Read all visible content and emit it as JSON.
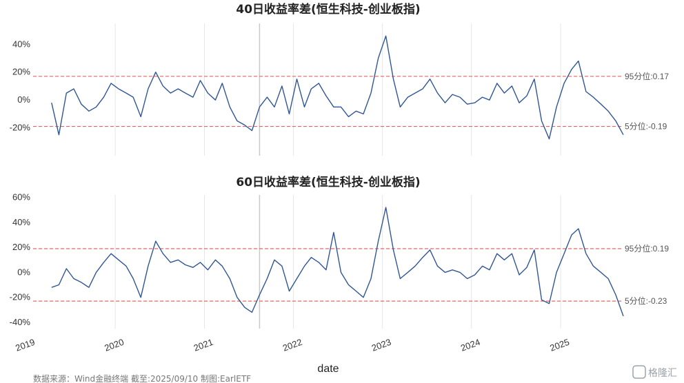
{
  "colors": {
    "line": "#2f5597",
    "threshold": "#e06666",
    "panel_bg": "#ffffff",
    "grid": "#e6e6e6",
    "vline": "#c9c9c9"
  },
  "chart_data": [
    {
      "type": "line",
      "title": "40日收益率差(恒生科技-创业板指)",
      "ylim": [
        -0.4,
        0.55
      ],
      "yticks": [
        -0.2,
        0.0,
        0.2,
        0.4
      ],
      "yticklabels": [
        "-20%",
        "0%",
        "20%",
        "40%"
      ],
      "thresholds": [
        {
          "label": "95分位:0.17",
          "value": 0.17
        },
        {
          "label": "5分位:-0.19",
          "value": -0.19
        }
      ],
      "series": [
        {
          "x": [
            "2019-04",
            "2019-05",
            "2019-06",
            "2019-07",
            "2019-08",
            "2019-09",
            "2019-10",
            "2019-11",
            "2019-12",
            "2020-01",
            "2020-02",
            "2020-03",
            "2020-04",
            "2020-05",
            "2020-06",
            "2020-07",
            "2020-08",
            "2020-09",
            "2020-10",
            "2020-11",
            "2020-12",
            "2021-01",
            "2021-02",
            "2021-03",
            "2021-04",
            "2021-05",
            "2021-06",
            "2021-07",
            "2021-08",
            "2021-09",
            "2021-10",
            "2021-11",
            "2021-12",
            "2022-01",
            "2022-02",
            "2022-03",
            "2022-04",
            "2022-05",
            "2022-06",
            "2022-07",
            "2022-08",
            "2022-09",
            "2022-10",
            "2022-11",
            "2022-12",
            "2023-01",
            "2023-02",
            "2023-03",
            "2023-04",
            "2023-05",
            "2023-06",
            "2023-07",
            "2023-08",
            "2023-09",
            "2023-10",
            "2023-11",
            "2023-12",
            "2024-01",
            "2024-02",
            "2024-03",
            "2024-04",
            "2024-05",
            "2024-06",
            "2024-07",
            "2024-08",
            "2024-09",
            "2024-10",
            "2024-11",
            "2024-12",
            "2025-01",
            "2025-02",
            "2025-03",
            "2025-04",
            "2025-05",
            "2025-06",
            "2025-07",
            "2025-08",
            "2025-09"
          ],
          "y": [
            -0.02,
            -0.25,
            0.05,
            0.08,
            -0.03,
            -0.08,
            -0.05,
            0.02,
            0.12,
            0.08,
            0.05,
            0.02,
            -0.12,
            0.08,
            0.2,
            0.1,
            0.05,
            0.08,
            0.05,
            0.02,
            0.14,
            0.05,
            0.0,
            0.12,
            -0.05,
            -0.15,
            -0.18,
            -0.22,
            -0.05,
            0.02,
            -0.05,
            0.1,
            -0.1,
            0.15,
            -0.05,
            0.08,
            0.12,
            0.03,
            -0.05,
            -0.05,
            -0.12,
            -0.08,
            -0.1,
            0.05,
            0.3,
            0.46,
            0.15,
            -0.05,
            0.02,
            0.05,
            0.08,
            0.15,
            0.05,
            -0.02,
            0.04,
            0.02,
            -0.03,
            -0.02,
            0.02,
            0.0,
            0.12,
            0.05,
            0.1,
            -0.02,
            0.03,
            0.15,
            -0.15,
            -0.28,
            -0.05,
            0.12,
            0.22,
            0.28,
            0.06,
            0.02,
            -0.03,
            -0.08,
            -0.15,
            -0.25
          ]
        }
      ]
    },
    {
      "type": "line",
      "title": "60日收益率差(恒生科技-创业板指)",
      "ylim": [
        -0.45,
        0.62
      ],
      "yticks": [
        -0.4,
        -0.2,
        0.0,
        0.2,
        0.4,
        0.6
      ],
      "yticklabels": [
        "-40%",
        "-20%",
        "0%",
        "20%",
        "40%",
        "60%"
      ],
      "thresholds": [
        {
          "label": "95分位:0.19",
          "value": 0.19
        },
        {
          "label": "5分位:-0.23",
          "value": -0.23
        }
      ],
      "series": [
        {
          "x": [
            "2019-04",
            "2019-05",
            "2019-06",
            "2019-07",
            "2019-08",
            "2019-09",
            "2019-10",
            "2019-11",
            "2019-12",
            "2020-01",
            "2020-02",
            "2020-03",
            "2020-04",
            "2020-05",
            "2020-06",
            "2020-07",
            "2020-08",
            "2020-09",
            "2020-10",
            "2020-11",
            "2020-12",
            "2021-01",
            "2021-02",
            "2021-03",
            "2021-04",
            "2021-05",
            "2021-06",
            "2021-07",
            "2021-08",
            "2021-09",
            "2021-10",
            "2021-11",
            "2021-12",
            "2022-01",
            "2022-02",
            "2022-03",
            "2022-04",
            "2022-05",
            "2022-06",
            "2022-07",
            "2022-08",
            "2022-09",
            "2022-10",
            "2022-11",
            "2022-12",
            "2023-01",
            "2023-02",
            "2023-03",
            "2023-04",
            "2023-05",
            "2023-06",
            "2023-07",
            "2023-08",
            "2023-09",
            "2023-10",
            "2023-11",
            "2023-12",
            "2024-01",
            "2024-02",
            "2024-03",
            "2024-04",
            "2024-05",
            "2024-06",
            "2024-07",
            "2024-08",
            "2024-09",
            "2024-10",
            "2024-11",
            "2024-12",
            "2025-01",
            "2025-02",
            "2025-03",
            "2025-04",
            "2025-05",
            "2025-06",
            "2025-07",
            "2025-08",
            "2025-09"
          ],
          "y": [
            -0.12,
            -0.1,
            0.03,
            -0.05,
            -0.08,
            -0.12,
            0.0,
            0.08,
            0.15,
            0.1,
            0.05,
            -0.05,
            -0.2,
            0.05,
            0.25,
            0.15,
            0.08,
            0.1,
            0.06,
            0.04,
            0.08,
            0.02,
            0.1,
            0.05,
            -0.05,
            -0.2,
            -0.28,
            -0.32,
            -0.18,
            -0.05,
            0.1,
            0.05,
            -0.15,
            -0.05,
            0.05,
            0.12,
            0.08,
            0.02,
            0.32,
            0.0,
            -0.1,
            -0.15,
            -0.2,
            -0.05,
            0.25,
            0.52,
            0.18,
            -0.05,
            0.0,
            0.05,
            0.12,
            0.18,
            0.05,
            0.0,
            0.02,
            0.0,
            -0.05,
            -0.02,
            0.05,
            0.02,
            0.15,
            0.1,
            0.15,
            -0.02,
            0.04,
            0.18,
            -0.22,
            -0.25,
            0.0,
            0.15,
            0.3,
            0.35,
            0.15,
            0.05,
            0.0,
            -0.05,
            -0.18,
            -0.35
          ]
        }
      ],
      "xticklabels": [
        "2019",
        "2020",
        "2021",
        "2022",
        "2023",
        "2024",
        "2025"
      ],
      "xlabel": "date"
    }
  ],
  "footer": {
    "source": "数据来源：Wind金融终端 截至:2025/09/10 制图:EarlETF",
    "watermark": "格隆汇"
  }
}
